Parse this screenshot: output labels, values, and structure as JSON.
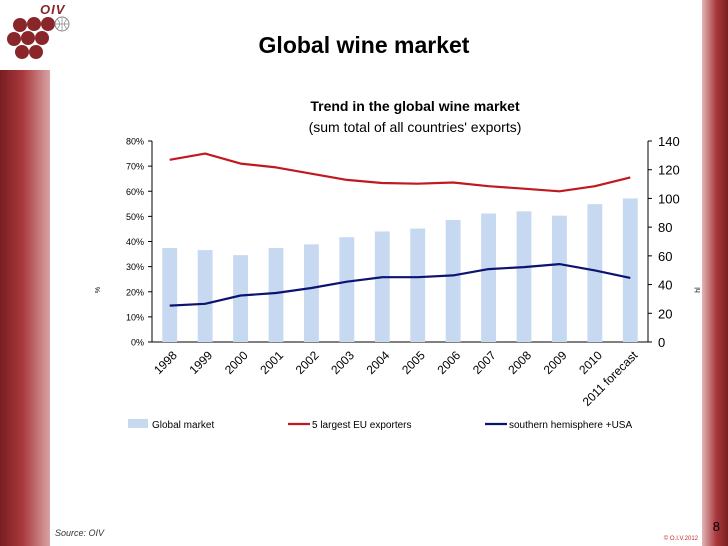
{
  "slide": {
    "title": "Global wine market",
    "source": "Source: OIV",
    "page_number": "8",
    "copyright": "© O.I.V.2012",
    "logo_text": "OIV"
  },
  "colors": {
    "bar": "#c6d9f1",
    "eu": "#c0191f",
    "south": "#0c1470",
    "sidebar": "#a8383c"
  },
  "chart_data": {
    "type": "bar",
    "title": "Trend in the global wine market",
    "subtitle": "(sum total of all countries' exports)",
    "categories": [
      "1998",
      "1999",
      "2000",
      "2001",
      "2002",
      "2003",
      "2004",
      "2005",
      "2006",
      "2007",
      "2008",
      "2009",
      "2010",
      "2011 forecast"
    ],
    "left_axis": {
      "ticks": [
        "0%",
        "10%",
        "20%",
        "30%",
        "40%",
        "50%",
        "60%",
        "70%",
        "80%"
      ],
      "range": [
        0,
        80
      ],
      "label": "%"
    },
    "right_axis": {
      "ticks": [
        "0",
        "20",
        "40",
        "60",
        "80",
        "100",
        "120",
        "140"
      ],
      "range": [
        0,
        140
      ],
      "label": "hl"
    },
    "series": [
      {
        "name": "Global market",
        "type": "bar",
        "axis": "right",
        "values": [
          65.5,
          64,
          60.5,
          65.5,
          68,
          73,
          77,
          79,
          85,
          89.5,
          91,
          88,
          96,
          100
        ]
      },
      {
        "name": "5 largest EU exporters",
        "type": "line",
        "axis": "left",
        "values": [
          72.5,
          75,
          71,
          69.5,
          67,
          64.5,
          63.3,
          63,
          63.5,
          62,
          61,
          60,
          62,
          65.5
        ]
      },
      {
        "name": "southern hemisphere +USA",
        "type": "line",
        "axis": "left",
        "values": [
          14.5,
          15.2,
          18.5,
          19.5,
          21.5,
          24,
          25.8,
          25.8,
          26.5,
          29,
          29.8,
          31,
          28.5,
          25.5
        ]
      }
    ],
    "legend_position": "bottom",
    "grid": false
  }
}
